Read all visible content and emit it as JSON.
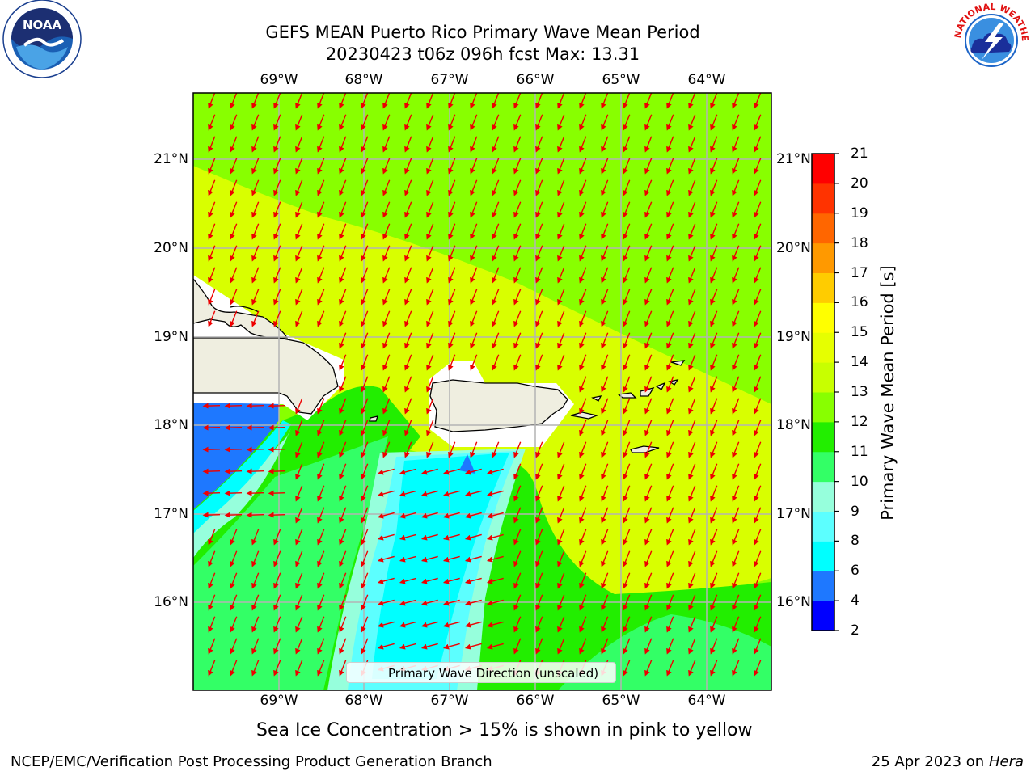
{
  "title": {
    "line1": "GEFS MEAN Puerto Rico Primary Wave Mean Period",
    "line2": "20230423 t06z 096h fcst   Max: 13.31"
  },
  "axes": {
    "lon_ticks": [
      "69°W",
      "68°W",
      "67°W",
      "66°W",
      "65°W",
      "64°W"
    ],
    "lat_ticks": [
      "21°N",
      "20°N",
      "19°N",
      "18°N",
      "17°N",
      "16°N"
    ]
  },
  "colorbar": {
    "label": "Primary Wave Mean Period [s]",
    "levels": [
      2,
      4,
      6,
      8,
      9,
      10,
      11,
      12,
      13,
      14,
      15,
      16,
      17,
      18,
      19,
      20,
      21
    ],
    "tick_labels": [
      "2",
      "4",
      "6",
      "8",
      "9",
      "10",
      "11",
      "12",
      "13",
      "14",
      "15",
      "16",
      "17",
      "18",
      "19",
      "20",
      "21"
    ],
    "colors": [
      "#0000ff",
      "#1e78ff",
      "#00ffff",
      "#5cffff",
      "#96ffdc",
      "#33ff66",
      "#22ee00",
      "#88ff00",
      "#c8ff00",
      "#e6ff00",
      "#ffff00",
      "#ffcc00",
      "#ff9900",
      "#ff6600",
      "#ff3300",
      "#ff0000"
    ]
  },
  "legend": {
    "label": "Primary Wave Direction (unscaled)"
  },
  "note": "Sea Ice Concentration > 15% is shown in pink to yellow",
  "footer": {
    "left": "NCEP/EMC/Verification Post Processing Product Generation Branch",
    "right_prefix": "25 Apr 2023 on ",
    "right_italic": "Hera"
  },
  "logos": {
    "left_name": "noaa-logo",
    "left_text": "NOAA",
    "right_name": "nws-logo",
    "right_text": "NATIONAL WEATHER SERVICE"
  },
  "colors": {
    "arrow": "#ee0000",
    "land": "#efeee0",
    "grid": "#b4b4b4"
  }
}
